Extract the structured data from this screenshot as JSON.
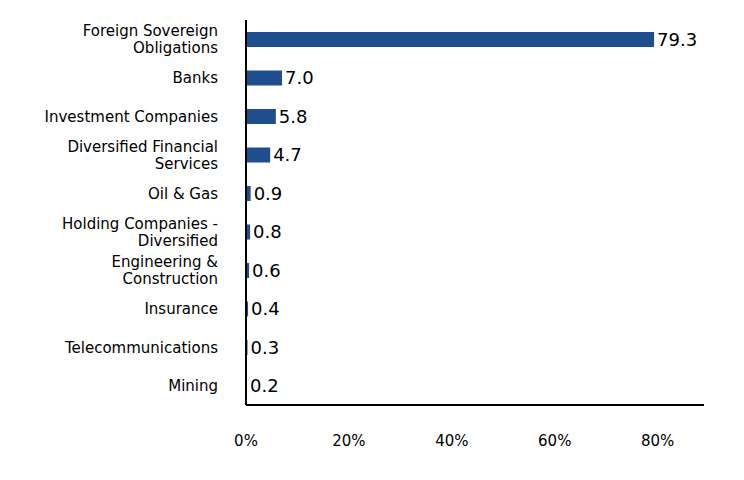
{
  "chart_data": {
    "type": "bar",
    "orientation": "horizontal",
    "categories": [
      "Foreign Sovereign Obligations",
      "Banks",
      "Investment Companies",
      "Diversified Financial Services",
      "Oil & Gas",
      "Holding Companies - Diversified",
      "Engineering & Construction",
      "Insurance",
      "Telecommunications",
      "Mining"
    ],
    "values": [
      79.3,
      7.0,
      5.8,
      4.7,
      0.9,
      0.8,
      0.6,
      0.4,
      0.3,
      0.2
    ],
    "value_labels": [
      "79.3",
      "7.0",
      "5.8",
      "4.7",
      "0.9",
      "0.8",
      "0.6",
      "0.4",
      "0.3",
      "0.2"
    ],
    "color": "#1f4e8f",
    "xlim": [
      0,
      89
    ],
    "xticks": [
      {
        "value": 0,
        "label": "0%"
      },
      {
        "value": 20,
        "label": "20%"
      },
      {
        "value": 40,
        "label": "40%"
      },
      {
        "value": 60,
        "label": "60%"
      },
      {
        "value": 80,
        "label": "80%"
      }
    ],
    "data_labels": true,
    "grid": false
  }
}
